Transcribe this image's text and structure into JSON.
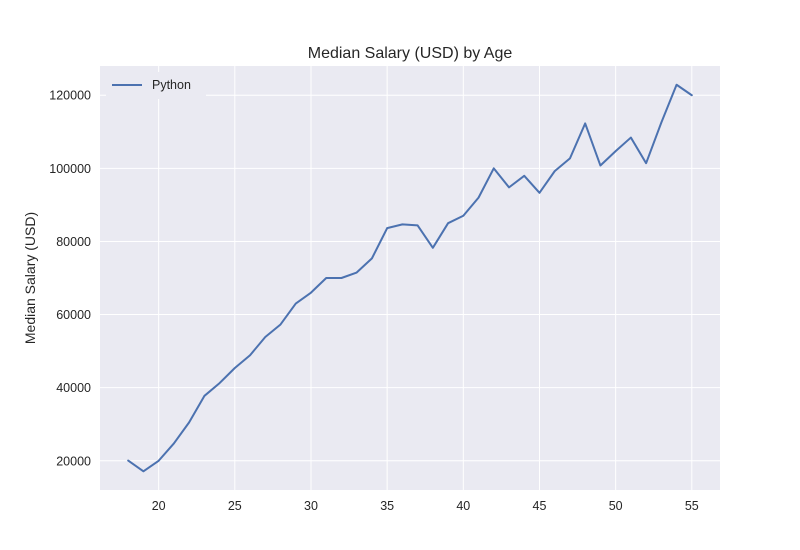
{
  "chart_data": {
    "type": "line",
    "title": "Median Salary (USD) by Age",
    "xlabel": "",
    "ylabel": "Median Salary (USD)",
    "xlim": [
      16.15,
      56.85
    ],
    "ylim": [
      12000,
      128000
    ],
    "xticks": [
      20,
      25,
      30,
      35,
      40,
      45,
      50,
      55
    ],
    "yticks": [
      20000,
      40000,
      60000,
      80000,
      100000,
      120000
    ],
    "grid": true,
    "legend_position": "top-left",
    "background_color": "#EAEAF2",
    "grid_color": "#FFFFFF",
    "series": [
      {
        "name": "Python",
        "color": "#4C72B0",
        "x": [
          18,
          19,
          20,
          21,
          22,
          23,
          24,
          25,
          26,
          27,
          28,
          29,
          30,
          31,
          32,
          33,
          34,
          35,
          36,
          37,
          38,
          39,
          40,
          41,
          42,
          43,
          44,
          45,
          46,
          47,
          48,
          49,
          50,
          51,
          52,
          53,
          54,
          55
        ],
        "values": [
          20046,
          17100,
          20000,
          24744,
          30500,
          37732,
          41247,
          45372,
          48876,
          53850,
          57287,
          63016,
          65998,
          70003,
          70000,
          71496,
          75370,
          83640,
          84666,
          84392,
          78254,
          85000,
          87038,
          91991,
          100000,
          94796,
          97962,
          93302,
          99240,
          102736,
          112285,
          100771,
          104708,
          108423,
          101407,
          112542,
          122870,
          120000
        ]
      }
    ]
  }
}
